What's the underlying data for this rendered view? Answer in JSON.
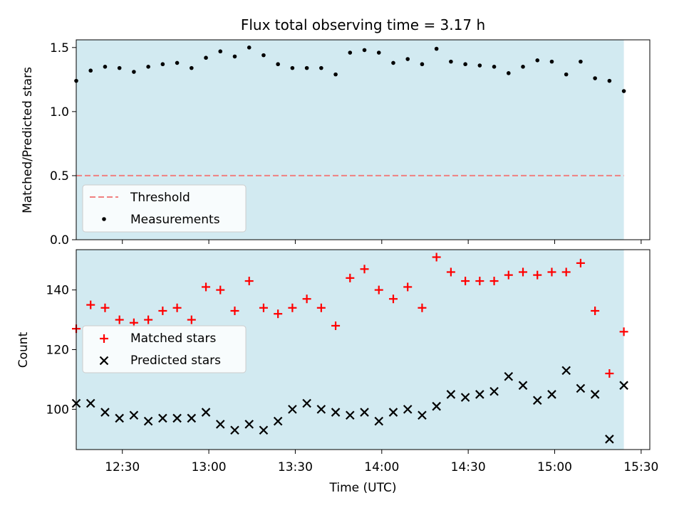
{
  "chart_data": {
    "title": "Flux total observing time = 3.17 h",
    "xlabel": "Time (UTC)",
    "xlim": [
      "12:14",
      "15:33"
    ],
    "x_ticks": [
      "12:30",
      "13:00",
      "13:30",
      "14:00",
      "14:30",
      "15:00",
      "15:30"
    ],
    "shaded_band": {
      "from": "12:14",
      "to": "15:24",
      "color": "#add8e6"
    },
    "times": [
      "12:14",
      "12:19",
      "12:24",
      "12:29",
      "12:34",
      "12:39",
      "12:44",
      "12:49",
      "12:54",
      "12:59",
      "13:04",
      "13:09",
      "13:14",
      "13:19",
      "13:24",
      "13:29",
      "13:34",
      "13:39",
      "13:44",
      "13:49",
      "13:54",
      "13:59",
      "14:04",
      "14:09",
      "14:14",
      "14:19",
      "14:24",
      "14:29",
      "14:34",
      "14:39",
      "14:44",
      "14:49",
      "14:54",
      "14:59",
      "15:04",
      "15:09",
      "15:14",
      "15:19",
      "15:24"
    ],
    "panels": [
      {
        "type": "scatter",
        "ylabel": "Matched/Predicted stars",
        "ylim": [
          0,
          1.56
        ],
        "y_ticks": [
          "0.0",
          "0.5",
          "1.0",
          "1.5"
        ],
        "threshold": {
          "name": "Threshold",
          "value": 0.5,
          "color": "#f08080"
        },
        "series": [
          {
            "name": "Measurements",
            "marker": "dot",
            "color": "#000000",
            "values": [
              1.24,
              1.32,
              1.35,
              1.34,
              1.31,
              1.35,
              1.37,
              1.38,
              1.34,
              1.42,
              1.47,
              1.43,
              1.5,
              1.44,
              1.37,
              1.34,
              1.34,
              1.34,
              1.29,
              1.46,
              1.48,
              1.46,
              1.38,
              1.41,
              1.37,
              1.49,
              1.39,
              1.37,
              1.36,
              1.35,
              1.3,
              1.35,
              1.4,
              1.39,
              1.29,
              1.39,
              1.26,
              1.24,
              1.16
            ]
          }
        ],
        "legend": {
          "placement": "lower-left"
        }
      },
      {
        "type": "scatter",
        "ylabel": "Count",
        "ylim": [
          86.5,
          153.5
        ],
        "y_ticks": [
          "100",
          "120",
          "140"
        ],
        "series": [
          {
            "name": "Matched stars",
            "marker": "plus",
            "color": "#ff0000",
            "values": [
              127,
              135,
              134,
              130,
              129,
              130,
              133,
              134,
              130,
              141,
              140,
              133,
              143,
              134,
              132,
              134,
              137,
              134,
              128,
              144,
              147,
              140,
              137,
              141,
              134,
              151,
              146,
              143,
              143,
              143,
              145,
              146,
              145,
              146,
              146,
              149,
              133,
              112,
              126
            ]
          },
          {
            "name": "Predicted stars",
            "marker": "x",
            "color": "#000000",
            "values": [
              102,
              102,
              99,
              97,
              98,
              96,
              97,
              97,
              97,
              99,
              95,
              93,
              95,
              93,
              96,
              100,
              102,
              100,
              99,
              98,
              99,
              96,
              99,
              100,
              98,
              101,
              105,
              104,
              105,
              106,
              111,
              108,
              103,
              105,
              113,
              107,
              105,
              90,
              108
            ]
          }
        ],
        "legend": {
          "placement": "center-left"
        }
      }
    ]
  }
}
